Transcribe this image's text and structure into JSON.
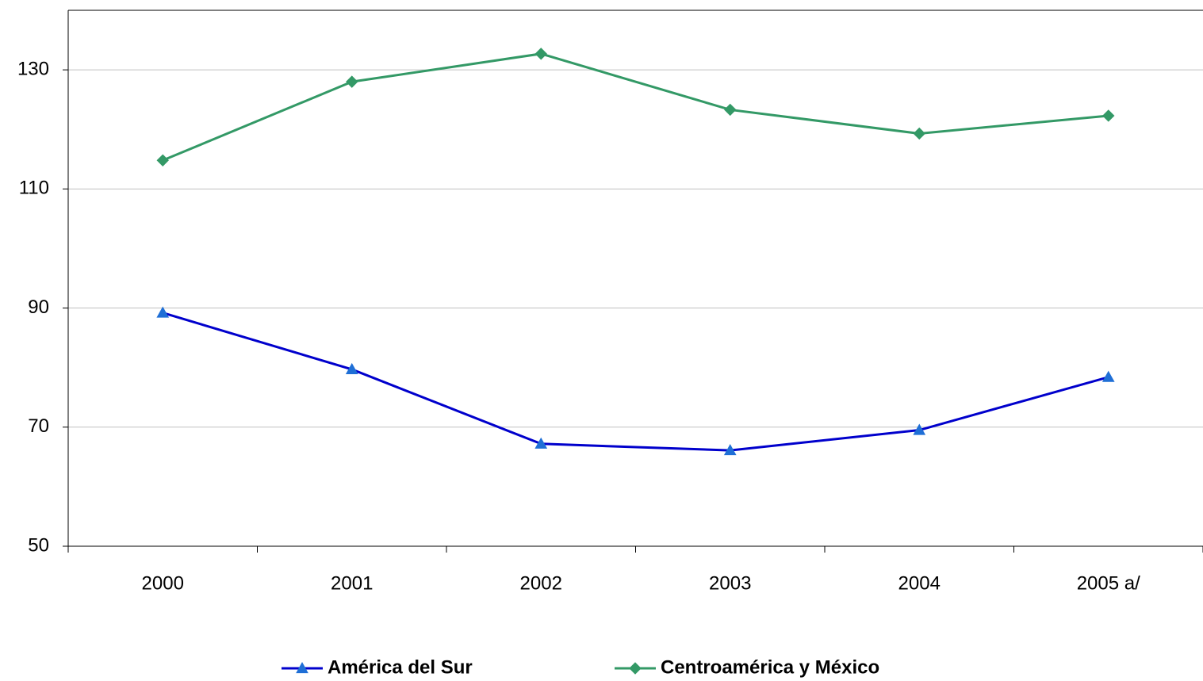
{
  "chart_data": {
    "type": "line",
    "categories": [
      "2000",
      "2001",
      "2002",
      "2003",
      "2004",
      "2005 a/"
    ],
    "series": [
      {
        "name": "América del Sur",
        "color": "#0000cc",
        "marker_color": "#1f6fd6",
        "marker": "triangle",
        "values": [
          89.2,
          79.7,
          67.2,
          66.1,
          69.5,
          78.4
        ]
      },
      {
        "name": "Centroamérica y México",
        "color": "#339966",
        "marker_color": "#339966",
        "marker": "diamond",
        "values": [
          114.8,
          128.0,
          132.7,
          123.3,
          119.3,
          122.3
        ]
      }
    ],
    "ylim": [
      50,
      140
    ],
    "yticks": [
      50,
      70,
      90,
      110,
      130
    ],
    "grid": true,
    "legend": "bottom"
  }
}
